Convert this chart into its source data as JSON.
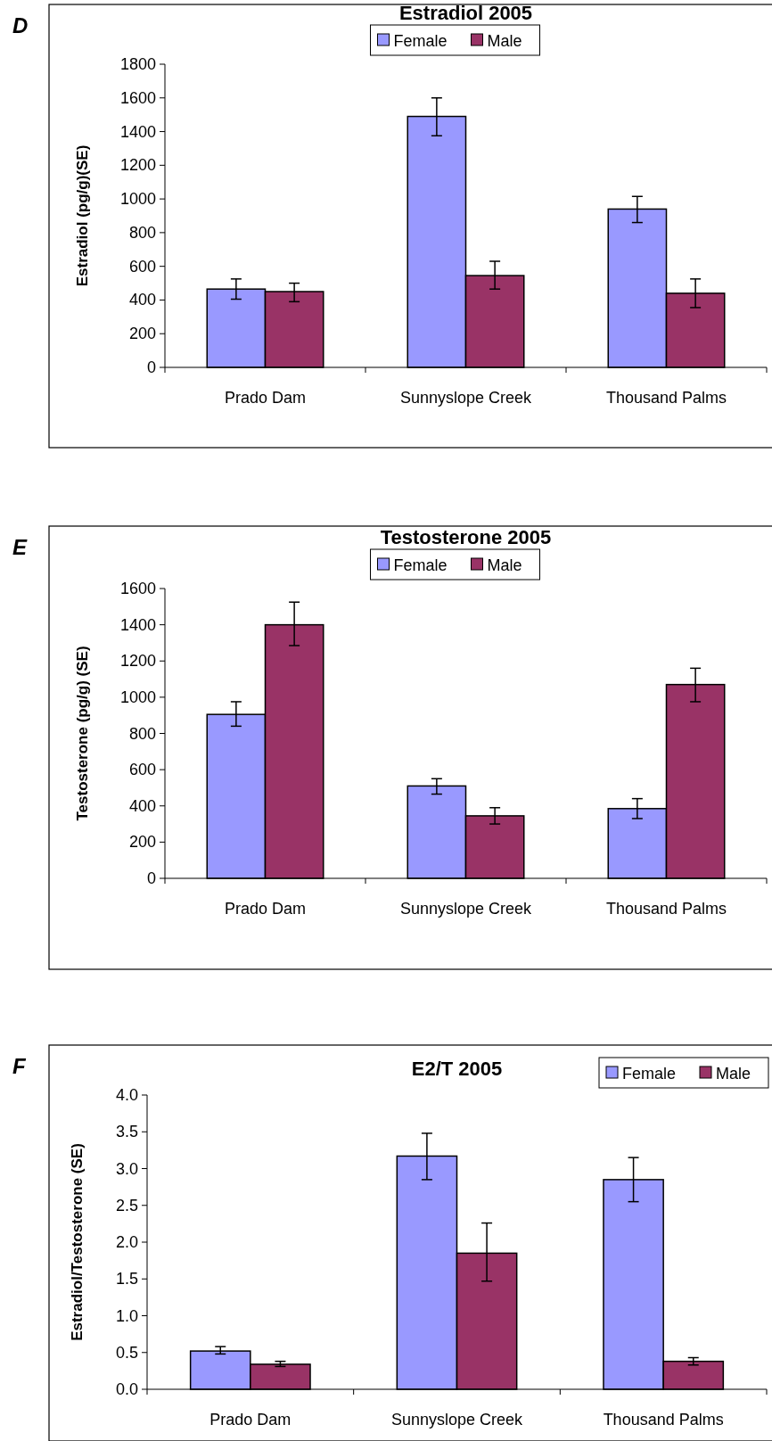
{
  "chart_data": [
    {
      "type": "bar",
      "title": "Estradiol 2005",
      "ylabel": "Estradiol (pg/g)(SE)",
      "annotations": [
        "D"
      ],
      "categories": [
        "Prado Dam",
        "Sunnyslope Creek",
        "Thousand Palms"
      ],
      "ylim": [
        0,
        1800
      ],
      "yticks": [
        0,
        200,
        400,
        600,
        800,
        1000,
        1200,
        1400,
        1600,
        1800
      ],
      "legend": "top",
      "grid": false,
      "series": [
        {
          "name": "Female",
          "color": "#9999ff",
          "values": [
            465,
            1490,
            940
          ],
          "errors": [
            [
              405,
              525
            ],
            [
              1375,
              1600
            ],
            [
              860,
              1015
            ]
          ]
        },
        {
          "name": "Male",
          "color": "#993366",
          "values": [
            450,
            545,
            440
          ],
          "errors": [
            [
              390,
              500
            ],
            [
              465,
              630
            ],
            [
              355,
              525
            ]
          ]
        }
      ]
    },
    {
      "type": "bar",
      "title": "Testosterone 2005",
      "ylabel": "Testosterone (pg/g) (SE)",
      "annotations": [
        "E"
      ],
      "categories": [
        "Prado Dam",
        "Sunnyslope Creek",
        "Thousand Palms"
      ],
      "ylim": [
        0,
        1600
      ],
      "yticks": [
        0,
        200,
        400,
        600,
        800,
        1000,
        1200,
        1400,
        1600
      ],
      "legend": "top",
      "grid": false,
      "series": [
        {
          "name": "Female",
          "color": "#9999ff",
          "values": [
            905,
            510,
            385
          ],
          "errors": [
            [
              840,
              975
            ],
            [
              465,
              550
            ],
            [
              330,
              440
            ]
          ]
        },
        {
          "name": "Male",
          "color": "#993366",
          "values": [
            1400,
            345,
            1070
          ],
          "errors": [
            [
              1285,
              1525
            ],
            [
              300,
              390
            ],
            [
              975,
              1160
            ]
          ]
        }
      ]
    },
    {
      "type": "bar",
      "title": "E2/T 2005",
      "ylabel": "Estradiol/Testosterone (SE)",
      "annotations": [
        "F"
      ],
      "categories": [
        "Prado Dam",
        "Sunnyslope Creek",
        "Thousand Palms"
      ],
      "ylim": [
        0,
        4
      ],
      "yticks": [
        {
          "value": 0,
          "label": "0.0"
        },
        {
          "value": 0.5,
          "label": "0.5"
        },
        {
          "value": 1,
          "label": "1.0"
        },
        {
          "value": 1.5,
          "label": "1.5"
        },
        {
          "value": 2,
          "label": "2.0"
        },
        {
          "value": 2.5,
          "label": "2.5"
        },
        {
          "value": 3,
          "label": "3.0"
        },
        {
          "value": 3.5,
          "label": "3.5"
        },
        {
          "value": 4,
          "label": "4.0"
        }
      ],
      "legend": "top right",
      "grid": false,
      "series": [
        {
          "name": "Female",
          "color": "#9999ff",
          "values": [
            0.52,
            3.17,
            2.85
          ],
          "errors": [
            [
              0.48,
              0.58
            ],
            [
              2.85,
              3.48
            ],
            [
              2.55,
              3.15
            ]
          ]
        },
        {
          "name": "Male",
          "color": "#993366",
          "values": [
            0.34,
            1.85,
            0.38
          ],
          "errors": [
            [
              0.31,
              0.38
            ],
            [
              1.47,
              2.26
            ],
            [
              0.33,
              0.43
            ]
          ]
        }
      ]
    }
  ]
}
